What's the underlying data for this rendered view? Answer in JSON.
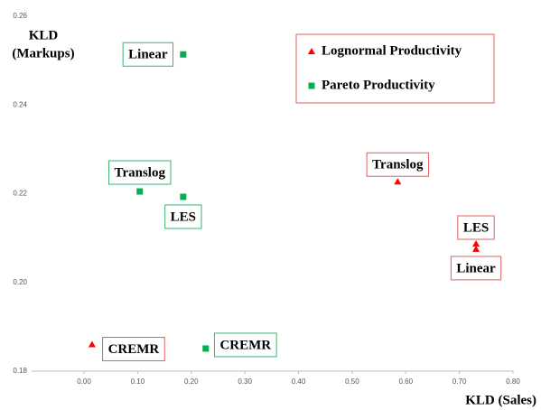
{
  "chart_data": {
    "type": "scatter",
    "xlabel": "KLD (Sales)",
    "ylabel": [
      "KLD",
      "(Markups)"
    ],
    "xlim": [
      0,
      0.8
    ],
    "ylim": [
      0.18,
      0.26
    ],
    "xticks": [
      {
        "value": 0,
        "label": "0.00"
      },
      {
        "value": 0.1,
        "label": "0.10"
      },
      {
        "value": 0.2,
        "label": "0.20"
      },
      {
        "value": 0.3,
        "label": "0.30"
      },
      {
        "value": 0.4,
        "label": "0.40"
      },
      {
        "value": 0.5,
        "label": "0.50"
      },
      {
        "value": 0.6,
        "label": "0.60"
      },
      {
        "value": 0.7,
        "label": "0.70"
      },
      {
        "value": 0.8,
        "label": "0.80"
      }
    ],
    "yticks": [
      0.18,
      {
        "value": 0.2,
        "label": "0.20"
      },
      0.22,
      0.24,
      0.26
    ],
    "legend": "upper right",
    "series": [
      {
        "name": "Lognormal Productivity",
        "color": "#ff0000",
        "marker": "triangle",
        "labels": [
          "CREMR",
          "Translog",
          "LES",
          "Linear"
        ],
        "x": [
          0.015,
          0.585,
          0.731,
          0.731
        ],
        "values": [
          0.186,
          0.2227,
          0.2087,
          0.2075
        ]
      },
      {
        "name": "Pareto Productivity",
        "color": "#00b050",
        "marker": "square",
        "labels": [
          "Linear",
          "Translog",
          "LES",
          "CREMR"
        ],
        "x": [
          0.185,
          0.104,
          0.185,
          0.227
        ],
        "values": [
          0.2514,
          0.2205,
          0.2193,
          0.1851
        ]
      }
    ]
  }
}
